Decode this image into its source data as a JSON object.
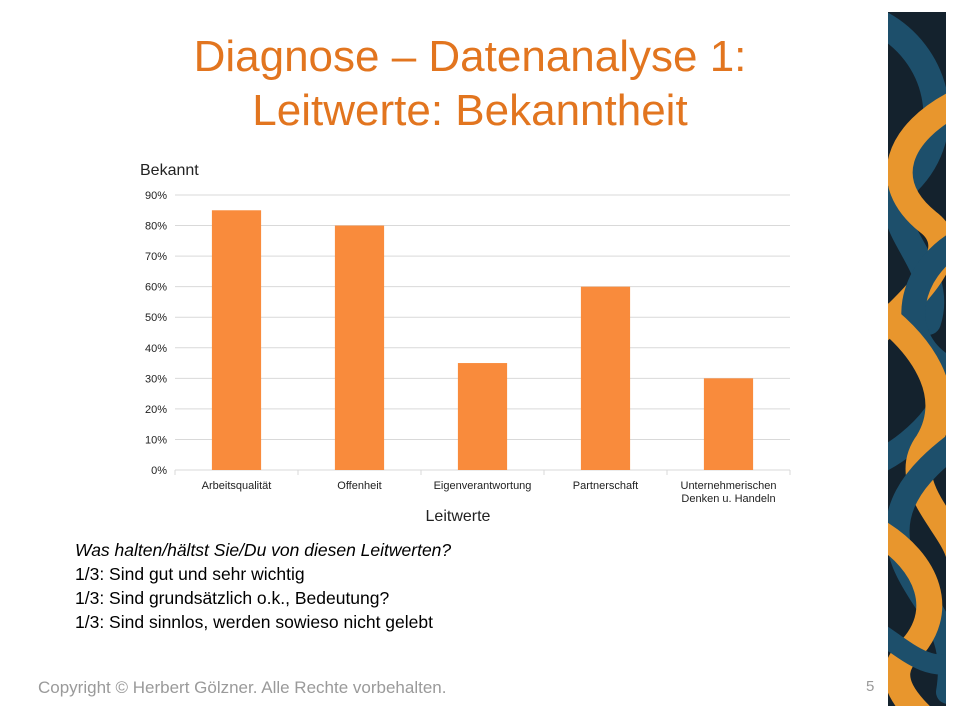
{
  "slide": {
    "title_line1": "Diagnose – Datenanalyse 1:",
    "title_line2": "Leitwerte: Bekanntheit",
    "footer": "Copyright © Herbert Gölzner. Alle Rechte vorbehalten.",
    "page_number": "5"
  },
  "notes": {
    "question": "Was halten/hältst Sie/Du von diesen Leitwerten?",
    "lines": [
      "1/3: Sind gut und sehr wichtig",
      "1/3: Sind grundsätzlich o.k., Bedeutung?",
      "1/3: Sind sinnlos, werden sowieso nicht gelebt"
    ]
  },
  "colors": {
    "title": "#e2751f",
    "bar": "#f98b3c",
    "grid": "#d9d9d9",
    "footer": "#9a9a9a",
    "deco_teal": "#1d4f6b",
    "deco_orange": "#e8962d",
    "deco_dark": "#14222d"
  },
  "decoration": {
    "icon": "ribbon-pattern-strip"
  },
  "chart_data": {
    "type": "bar",
    "title": "Bekannt",
    "xlabel": "Leitwerte",
    "ylabel": "",
    "categories": [
      [
        "Arbeitsqualität"
      ],
      [
        "Offenheit"
      ],
      [
        "Eigenverantwortung"
      ],
      [
        "Partnerschaft"
      ],
      [
        "Unternehmerischen",
        "Denken u. Handeln"
      ]
    ],
    "values": [
      0.85,
      0.8,
      0.35,
      0.6,
      0.3
    ],
    "yticks": [
      "0%",
      "10%",
      "20%",
      "30%",
      "40%",
      "50%",
      "60%",
      "70%",
      "80%",
      "90%"
    ],
    "ylim": [
      0,
      0.9
    ],
    "grid": true,
    "legend": "none"
  }
}
